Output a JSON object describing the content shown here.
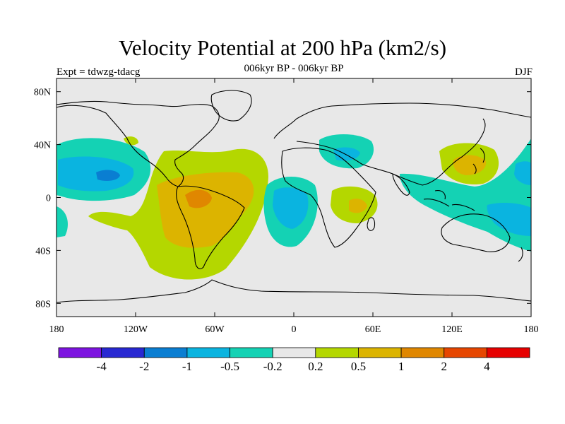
{
  "header": {
    "title": "Velocity Potential at 200 hPa (km2/s)",
    "subtitle": "006kyr BP - 006kyr BP",
    "left_label": "Expt = tdwzg-tdacg",
    "right_label": "DJF"
  },
  "map": {
    "projection": "cylindrical-equidistant",
    "lon_range": [
      -180,
      180
    ],
    "lat_range": [
      -90,
      90
    ],
    "x_ticks": [
      {
        "value": -180,
        "label": "180"
      },
      {
        "value": -120,
        "label": "120W"
      },
      {
        "value": -60,
        "label": "60W"
      },
      {
        "value": 0,
        "label": "0"
      },
      {
        "value": 60,
        "label": "60E"
      },
      {
        "value": 120,
        "label": "120E"
      },
      {
        "value": 180,
        "label": "180"
      }
    ],
    "y_ticks": [
      {
        "value": 80,
        "label": "80N"
      },
      {
        "value": 40,
        "label": "40N"
      },
      {
        "value": 0,
        "label": "0"
      },
      {
        "value": -40,
        "label": "40S"
      },
      {
        "value": -80,
        "label": "80S"
      }
    ],
    "background_color": "#e8e8e8"
  },
  "colorbar": {
    "colors": [
      "#7d14e0",
      "#2828d2",
      "#0a7ed2",
      "#0ab4e0",
      "#14d2b4",
      "#e8e8e8",
      "#b4d700",
      "#dcb400",
      "#e08700",
      "#e64600",
      "#e60000"
    ],
    "labels": [
      "-4",
      "-2",
      "-1",
      "-0.5",
      "-0.2",
      "0.2",
      "0.5",
      "1",
      "2",
      "4"
    ]
  }
}
